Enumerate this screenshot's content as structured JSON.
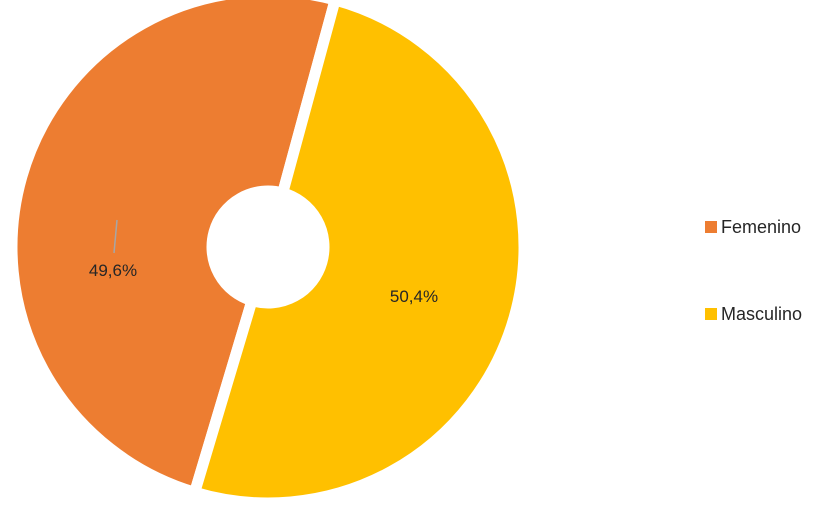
{
  "chart_data": {
    "type": "pie",
    "variant": "donut",
    "title": "",
    "categories": [
      "Femenino",
      "Masculino"
    ],
    "values": [
      49.6,
      50.4
    ],
    "labels": [
      "49,6%",
      "50,4%"
    ],
    "colors": [
      "#ED7D31",
      "#FFC000"
    ],
    "legend": {
      "position": "right",
      "entries": [
        "Femenino",
        "Masculino"
      ]
    }
  }
}
